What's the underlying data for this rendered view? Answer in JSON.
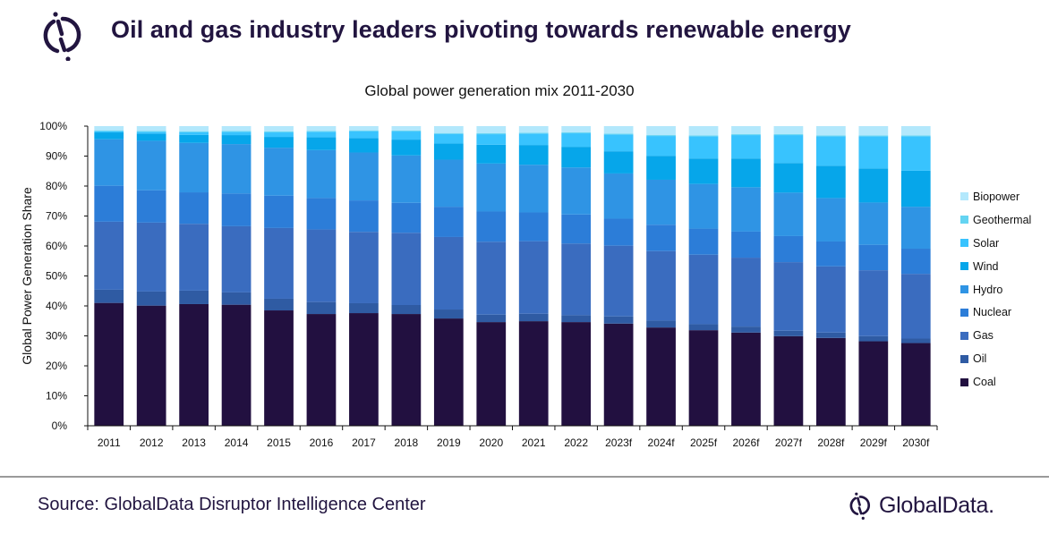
{
  "header": {
    "title": "Oil and gas industry leaders pivoting towards renewable energy",
    "logo_icon": "globaldata-mark-icon"
  },
  "footer": {
    "source": "Source: GlobalData Disruptor Intelligence Center",
    "brand": "GlobalData."
  },
  "colors": {
    "brand_dark": "#221540",
    "divider": "#9a9a9a"
  },
  "chart_data": {
    "type": "bar",
    "stacked": true,
    "title": "Global power generation mix 2011-2030",
    "xlabel": "",
    "ylabel": "Global Power Generation Share",
    "ylim": [
      0,
      100
    ],
    "yticks": [
      "0%",
      "10%",
      "20%",
      "30%",
      "40%",
      "50%",
      "60%",
      "70%",
      "80%",
      "90%",
      "100%"
    ],
    "grid": false,
    "legend_position": "right",
    "categories": [
      "2011",
      "2012",
      "2013",
      "2014",
      "2015",
      "2016",
      "2017",
      "2018",
      "2019",
      "2020",
      "2021",
      "2022",
      "2023f",
      "2024f",
      "2025f",
      "2026f",
      "2027f",
      "2028f",
      "2029f",
      "2030f"
    ],
    "series": [
      {
        "name": "Coal",
        "color": "#221040",
        "values": [
          41.0,
          40.1,
          40.6,
          40.4,
          38.5,
          37.3,
          37.6,
          37.3,
          35.8,
          34.6,
          34.9,
          34.6,
          34.1,
          32.8,
          31.9,
          31.1,
          29.9,
          29.3,
          28.2,
          27.6
        ]
      },
      {
        "name": "Oil",
        "color": "#2f5ba3",
        "values": [
          4.4,
          4.7,
          4.5,
          4.1,
          3.9,
          4.0,
          3.3,
          3.0,
          3.0,
          2.5,
          2.5,
          2.3,
          2.4,
          2.3,
          2.0,
          2.0,
          1.8,
          1.8,
          1.7,
          1.5
        ]
      },
      {
        "name": "Gas",
        "color": "#3a6cbf",
        "values": [
          22.7,
          23.0,
          22.3,
          22.1,
          23.6,
          24.2,
          23.8,
          24.1,
          24.2,
          24.3,
          24.2,
          23.9,
          23.6,
          23.2,
          23.2,
          23.0,
          22.9,
          22.1,
          22.0,
          21.6
        ]
      },
      {
        "name": "Nuclear",
        "color": "#2c7dd8",
        "values": [
          12.0,
          10.8,
          10.5,
          10.9,
          10.8,
          10.5,
          10.5,
          10.0,
          10.1,
          10.1,
          9.6,
          9.7,
          9.0,
          8.8,
          8.7,
          8.7,
          8.7,
          8.3,
          8.5,
          8.4
        ]
      },
      {
        "name": "Hydro",
        "color": "#2f94e4",
        "values": [
          15.5,
          16.5,
          16.5,
          16.5,
          16.0,
          16.0,
          16.0,
          15.8,
          15.7,
          16.0,
          15.9,
          15.7,
          15.1,
          15.0,
          14.9,
          14.8,
          14.5,
          14.5,
          14.1,
          14.0
        ]
      },
      {
        "name": "Wind",
        "color": "#06a6ea",
        "values": [
          2.3,
          2.4,
          2.7,
          3.0,
          3.6,
          4.3,
          4.8,
          5.3,
          5.4,
          6.3,
          6.6,
          6.9,
          7.4,
          8.0,
          8.5,
          9.6,
          9.9,
          10.8,
          11.4,
          12.0
        ]
      },
      {
        "name": "Solar",
        "color": "#38c3fe",
        "values": [
          0.4,
          0.6,
          0.9,
          1.1,
          1.5,
          1.8,
          2.3,
          2.7,
          3.2,
          3.5,
          3.8,
          4.5,
          5.6,
          6.6,
          7.4,
          7.8,
          9.3,
          9.8,
          10.7,
          11.5
        ]
      },
      {
        "name": "Geothermal",
        "color": "#64d4f2",
        "values": [
          0.3,
          0.3,
          0.3,
          0.3,
          0.3,
          0.3,
          0.3,
          0.3,
          0.3,
          0.3,
          0.3,
          0.3,
          0.3,
          0.3,
          0.3,
          0.3,
          0.3,
          0.3,
          0.3,
          0.3
        ]
      },
      {
        "name": "Biopower",
        "color": "#b3e8fc",
        "values": [
          1.4,
          1.6,
          1.7,
          1.6,
          1.8,
          1.6,
          1.4,
          1.5,
          2.3,
          2.4,
          2.2,
          2.1,
          2.5,
          3.0,
          3.1,
          2.7,
          2.7,
          3.1,
          3.1,
          3.1
        ]
      }
    ]
  }
}
